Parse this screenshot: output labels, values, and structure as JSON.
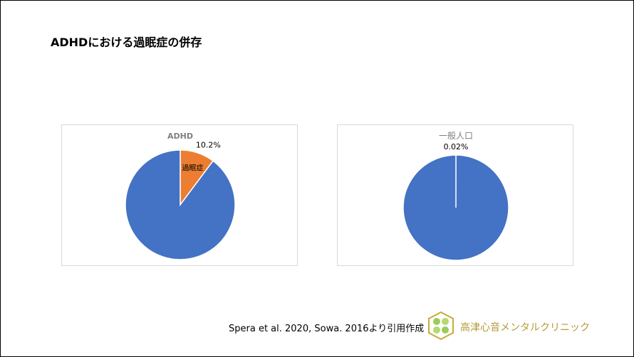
{
  "slide": {
    "title": "ADHDにおける過眠症の併存",
    "citation": "Spera et al. 2020, Sowa. 2016より引用作成",
    "clinic_name": "高津心音メンタルクリニック"
  },
  "chart_data": [
    {
      "type": "pie",
      "title": "ADHD",
      "slices": [
        {
          "label": "過眠症",
          "value": 10.2,
          "data_label": "10.2%",
          "color": "#ED7D31"
        },
        {
          "label": "",
          "value": 89.8,
          "data_label": "",
          "color": "#4472C4"
        }
      ]
    },
    {
      "type": "pie",
      "title": "一般人口",
      "slices": [
        {
          "label": "",
          "value": 0.02,
          "data_label": "0.02%",
          "color": "#ED7D31"
        },
        {
          "label": "",
          "value": 99.98,
          "data_label": "",
          "color": "#4472C4"
        }
      ]
    }
  ]
}
